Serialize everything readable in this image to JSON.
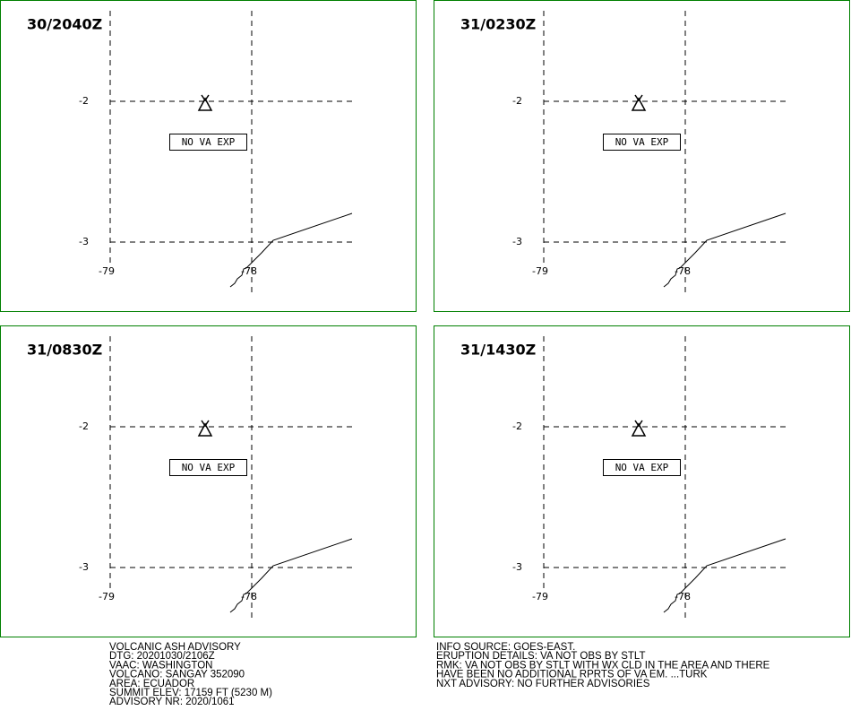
{
  "panels": [
    {
      "time": "30/2040Z",
      "lat_labels": [
        "-2",
        "-3"
      ],
      "lon_labels": [
        "-79",
        "-78"
      ],
      "box": "NO VA EXP"
    },
    {
      "time": "31/0230Z",
      "lat_labels": [
        "-2",
        "-3"
      ],
      "lon_labels": [
        "-79",
        "-78"
      ],
      "box": "NO VA EXP"
    },
    {
      "time": "31/0830Z",
      "lat_labels": [
        "-2",
        "-3"
      ],
      "lon_labels": [
        "-79",
        "-78"
      ],
      "box": "NO VA EXP"
    },
    {
      "time": "31/1430Z",
      "lat_labels": [
        "-2",
        "-3"
      ],
      "lon_labels": [
        "-79",
        "-78"
      ],
      "box": "NO VA EXP"
    }
  ],
  "advisory_left": [
    "VOLCANIC ASH ADVISORY",
    "DTG: 20201030/2106Z",
    "VAAC: WASHINGTON",
    "VOLCANO: SANGAY 352090",
    "AREA: ECUADOR",
    "SUMMIT ELEV: 17159 FT (5230 M)",
    "ADVISORY NR: 2020/1061"
  ],
  "advisory_right": [
    "INFO SOURCE: GOES-EAST.",
    "ERUPTION DETAILS: VA NOT OBS BY STLT",
    "RMK: VA NOT OBS BY STLT WITH WX CLD IN THE AREA AND THERE",
    "HAVE BEEN NO ADDITIONAL RPRTS OF VA EM. ...TURK",
    "NXT ADVISORY: NO FURTHER ADVISORIES"
  ]
}
